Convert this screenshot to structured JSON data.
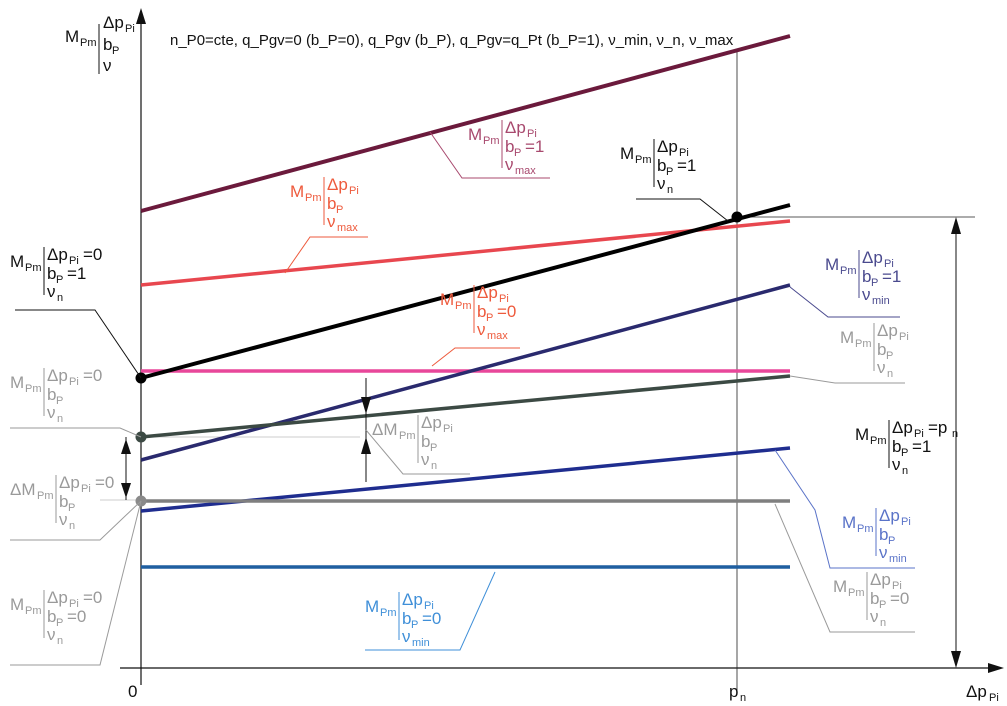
{
  "header": {
    "conditions": "n_P0=cte, q_Pgv=0 (b_P=0), q_Pgv (b_P), q_Pgv=q_Pt (b_P=1), ν_min, ν_n, ν_max"
  },
  "axes": {
    "x_origin": "0",
    "x_tick_pn": "p",
    "x_tick_pn_sub": "n",
    "x_label": "Δp",
    "x_label_sub": "Pi",
    "y_label_M": "M",
    "y_label_M_sub": "Pm",
    "y_label_dp": "Δp",
    "y_label_dp_sub": "Pi",
    "y_label_b": "b",
    "y_label_b_sub": "P",
    "y_label_nu": "ν"
  },
  "colors": {
    "vmax_bp1": "#6b1a3c",
    "vmax_bp": "#e8474f",
    "vmax_bp0": "#e8479a",
    "vn_bp1": "#000000",
    "vn_bp": "#3c4a44",
    "vn_bp0": "#7f7f7f",
    "vmin_bp1": "#2a2a6e",
    "vmin_bp": "#1f2d8f",
    "vmin_bp0": "#1f5fa0",
    "label_maroon": "#a8496e",
    "label_red": "#ee5a3c",
    "label_navy": "#4a4a8e",
    "label_blue": "#5a73c8",
    "label_lightblue": "#3f8fd8",
    "label_gray": "#9a9a9a",
    "label_dark": "#111111"
  },
  "chart_data": {
    "type": "line",
    "xlabel": "Δp_Pi",
    "ylabel": "M_Pm | Δp_Pi, b_P, ν",
    "x_ticks": [
      "0",
      "p_n"
    ],
    "series": [
      {
        "key": "vmax_bp1",
        "name": "M_Pm | Δp_Pi, b_P=1, ν_max",
        "trend": "rising"
      },
      {
        "key": "vmax_bp",
        "name": "M_Pm | Δp_Pi, b_P, ν_max",
        "trend": "rising"
      },
      {
        "key": "vmax_bp0",
        "name": "M_Pm | Δp_Pi, b_P=0, ν_max",
        "trend": "constant"
      },
      {
        "key": "vn_bp1",
        "name": "M_Pm | Δp_Pi, b_P=1, ν_n",
        "trend": "rising"
      },
      {
        "key": "vn_bp",
        "name": "M_Pm | Δp_Pi, b_P, ν_n",
        "trend": "rising"
      },
      {
        "key": "vn_bp0",
        "name": "M_Pm | Δp_Pi, b_P=0, ν_n",
        "trend": "constant"
      },
      {
        "key": "vmin_bp1",
        "name": "M_Pm | Δp_Pi, b_P=1, ν_min",
        "trend": "rising"
      },
      {
        "key": "vmin_bp",
        "name": "M_Pm | Δp_Pi, b_P, ν_min",
        "trend": "rising"
      },
      {
        "key": "vmin_bp0",
        "name": "M_Pm | Δp_Pi, b_P=0, ν_min",
        "trend": "constant"
      }
    ]
  },
  "labels": {
    "vmax_bp1": {
      "M": "M",
      "Msub": "Pm",
      "l1": "Δp",
      "l1sub": "Pi",
      "l2": "b",
      "l2sub": "P",
      "l2tail": "=1",
      "l3": "ν",
      "l3sub": "max"
    },
    "vmax_bp": {
      "M": "M",
      "Msub": "Pm",
      "l1": "Δp",
      "l1sub": "Pi",
      "l2": "b",
      "l2sub": "P",
      "l2tail": "",
      "l3": "ν",
      "l3sub": "max"
    },
    "vmax_bp0": {
      "M": "M",
      "Msub": "Pm",
      "l1": "Δp",
      "l1sub": "Pi",
      "l2": "b",
      "l2sub": "P",
      "l2tail": "=0",
      "l3": "ν",
      "l3sub": "max"
    },
    "vn_bp1_top": {
      "M": "M",
      "Msub": "Pm",
      "l1": "Δp",
      "l1sub": "Pi",
      "l2": "b",
      "l2sub": "P",
      "l2tail": "=1",
      "l3": "ν",
      "l3sub": "n"
    },
    "vn_bp1_origin": {
      "M": "M",
      "Msub": "Pm",
      "l1": "Δp",
      "l1sub": "Pi",
      "l1tail": "=0",
      "l2": "b",
      "l2sub": "P",
      "l2tail": "=1",
      "l3": "ν",
      "l3sub": "n"
    },
    "vmin_bp1": {
      "M": "M",
      "Msub": "Pm",
      "l1": "Δp",
      "l1sub": "Pi",
      "l2": "b",
      "l2sub": "P",
      "l2tail": "=1",
      "l3": "ν",
      "l3sub": "min"
    },
    "vn_bp": {
      "M": "M",
      "Msub": "Pm",
      "l1": "Δp",
      "l1sub": "Pi",
      "l2": "b",
      "l2sub": "P",
      "l2tail": "",
      "l3": "ν",
      "l3sub": "n"
    },
    "vn_bp_origin": {
      "M": "M",
      "Msub": "Pm",
      "l1": "Δp",
      "l1sub": "Pi",
      "l1tail": "=0",
      "l2": "b",
      "l2sub": "P",
      "l2tail": "",
      "l3": "ν",
      "l3sub": "n"
    },
    "delta_vn_bp": {
      "M": "ΔM",
      "Msub": "Pm",
      "l1": "Δp",
      "l1sub": "Pi",
      "l2": "b",
      "l2sub": "P",
      "l2tail": "",
      "l3": "ν",
      "l3sub": "n"
    },
    "delta_vn_origin": {
      "M": "ΔM",
      "Msub": "Pm",
      "l1": "Δp",
      "l1sub": "Pi",
      "l1tail": "=0",
      "l2": "b",
      "l2sub": "P",
      "l2tail": "",
      "l3": "ν",
      "l3sub": "n"
    },
    "vn_bp0_origin": {
      "M": "M",
      "Msub": "Pm",
      "l1": "Δp",
      "l1sub": "Pi",
      "l1tail": "=0",
      "l2": "b",
      "l2sub": "P",
      "l2tail": "=0",
      "l3": "ν",
      "l3sub": "n"
    },
    "vn_pn": {
      "M": "M",
      "Msub": "Pm",
      "l1": "Δp",
      "l1sub": "Pi",
      "l1tail": "=p",
      "l1tail2": "n",
      "l2": "b",
      "l2sub": "P",
      "l2tail": "=1",
      "l3": "ν",
      "l3sub": "n"
    },
    "vmin_bp": {
      "M": "M",
      "Msub": "Pm",
      "l1": "Δp",
      "l1sub": "Pi",
      "l2": "b",
      "l2sub": "P",
      "l2tail": "",
      "l3": "ν",
      "l3sub": "min"
    },
    "vn_bp0": {
      "M": "M",
      "Msub": "Pm",
      "l1": "Δp",
      "l1sub": "Pi",
      "l2": "b",
      "l2sub": "P",
      "l2tail": "=0",
      "l3": "ν",
      "l3sub": "n"
    },
    "vmin_bp0": {
      "M": "M",
      "Msub": "Pm",
      "l1": "Δp",
      "l1sub": "Pi",
      "l2": "b",
      "l2sub": "P",
      "l2tail": "=0",
      "l3": "ν",
      "l3sub": "min"
    }
  }
}
